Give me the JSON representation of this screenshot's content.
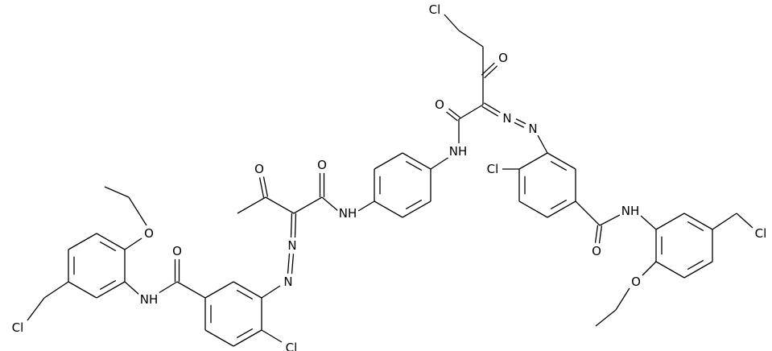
{
  "atoms": [
    "Cl",
    "O",
    "O",
    "N",
    "N",
    "NH",
    "Cl",
    "O",
    "O",
    "NH",
    "NH",
    "Cl",
    "N",
    "O",
    "N",
    "O",
    "O",
    "O",
    "NH",
    "Cl",
    "Cl"
  ]
}
